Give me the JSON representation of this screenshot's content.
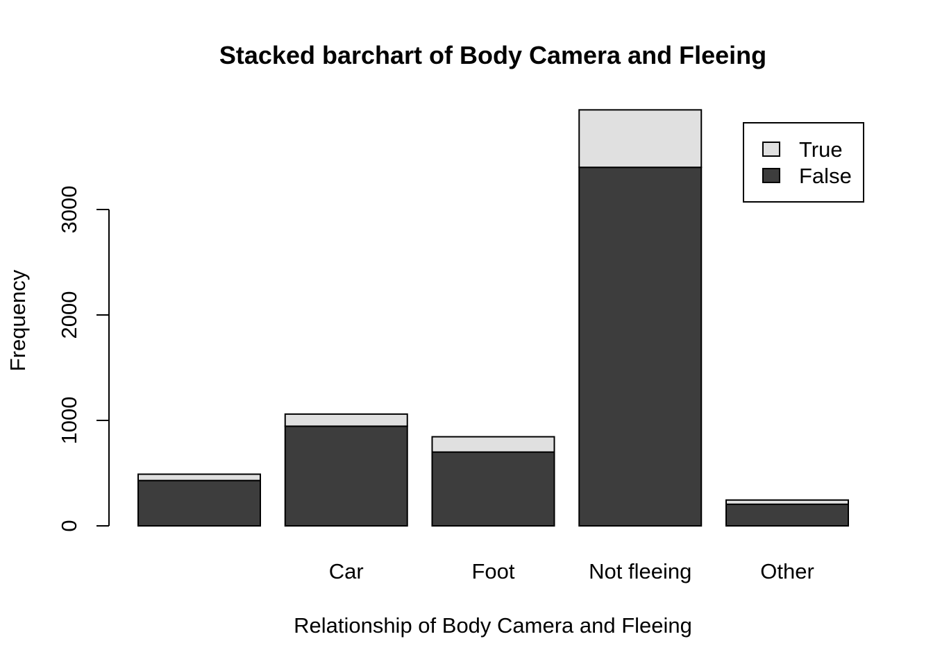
{
  "chart_data": {
    "type": "bar",
    "stacked": true,
    "title": "Stacked barchart of Body Camera and Fleeing",
    "xlabel": "Relationship of Body Camera and Fleeing",
    "ylabel": "Frequency",
    "categories": [
      "",
      "Car",
      "Foot",
      "Not fleeing",
      "Other"
    ],
    "series": [
      {
        "name": "False",
        "color": "#3d3d3d",
        "values": [
          430,
          945,
          700,
          3400,
          205
        ]
      },
      {
        "name": "True",
        "color": "#e0e0e0",
        "values": [
          60,
          115,
          145,
          545,
          40
        ]
      }
    ],
    "yticks": [
      0,
      1000,
      2000,
      3000
    ],
    "ytick_labels": [
      "0",
      "1000",
      "2000",
      "3000"
    ],
    "ylim": [
      0,
      3945
    ],
    "grid": false,
    "legend": {
      "position": "top-right",
      "entries": [
        {
          "label": "True",
          "color": "#e0e0e0"
        },
        {
          "label": "False",
          "color": "#3d3d3d"
        }
      ]
    }
  }
}
